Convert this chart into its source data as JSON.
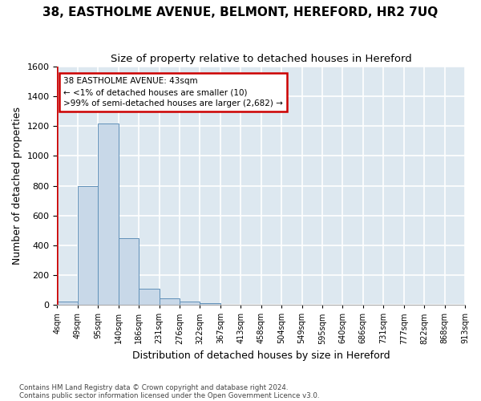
{
  "title1": "38, EASTHOLME AVENUE, BELMONT, HEREFORD, HR2 7UQ",
  "title2": "Size of property relative to detached houses in Hereford",
  "xlabel": "Distribution of detached houses by size in Hereford",
  "ylabel": "Number of detached properties",
  "footer1": "Contains HM Land Registry data © Crown copyright and database right 2024.",
  "footer2": "Contains public sector information licensed under the Open Government Licence v3.0.",
  "bin_labels": [
    "4sqm",
    "49sqm",
    "95sqm",
    "140sqm",
    "186sqm",
    "231sqm",
    "276sqm",
    "322sqm",
    "367sqm",
    "413sqm",
    "458sqm",
    "504sqm",
    "549sqm",
    "595sqm",
    "640sqm",
    "686sqm",
    "731sqm",
    "777sqm",
    "822sqm",
    "868sqm",
    "913sqm"
  ],
  "bar_values": [
    20,
    800,
    1220,
    450,
    110,
    45,
    20,
    10,
    0,
    0,
    0,
    0,
    0,
    0,
    0,
    0,
    0,
    0,
    0,
    0
  ],
  "bar_color": "#c8d8e8",
  "bar_edge_color": "#6090b8",
  "background_color": "#dde8f0",
  "grid_color": "#ffffff",
  "vline_color": "#cc0000",
  "annotation_box_edge": "#cc0000",
  "ylim_max": 1600,
  "yticks": [
    0,
    200,
    400,
    600,
    800,
    1000,
    1200,
    1400,
    1600
  ],
  "title1_fontsize": 11,
  "title2_fontsize": 9.5,
  "axis_label_fontsize": 9,
  "tick_fontsize": 8,
  "xtick_fontsize": 7
}
